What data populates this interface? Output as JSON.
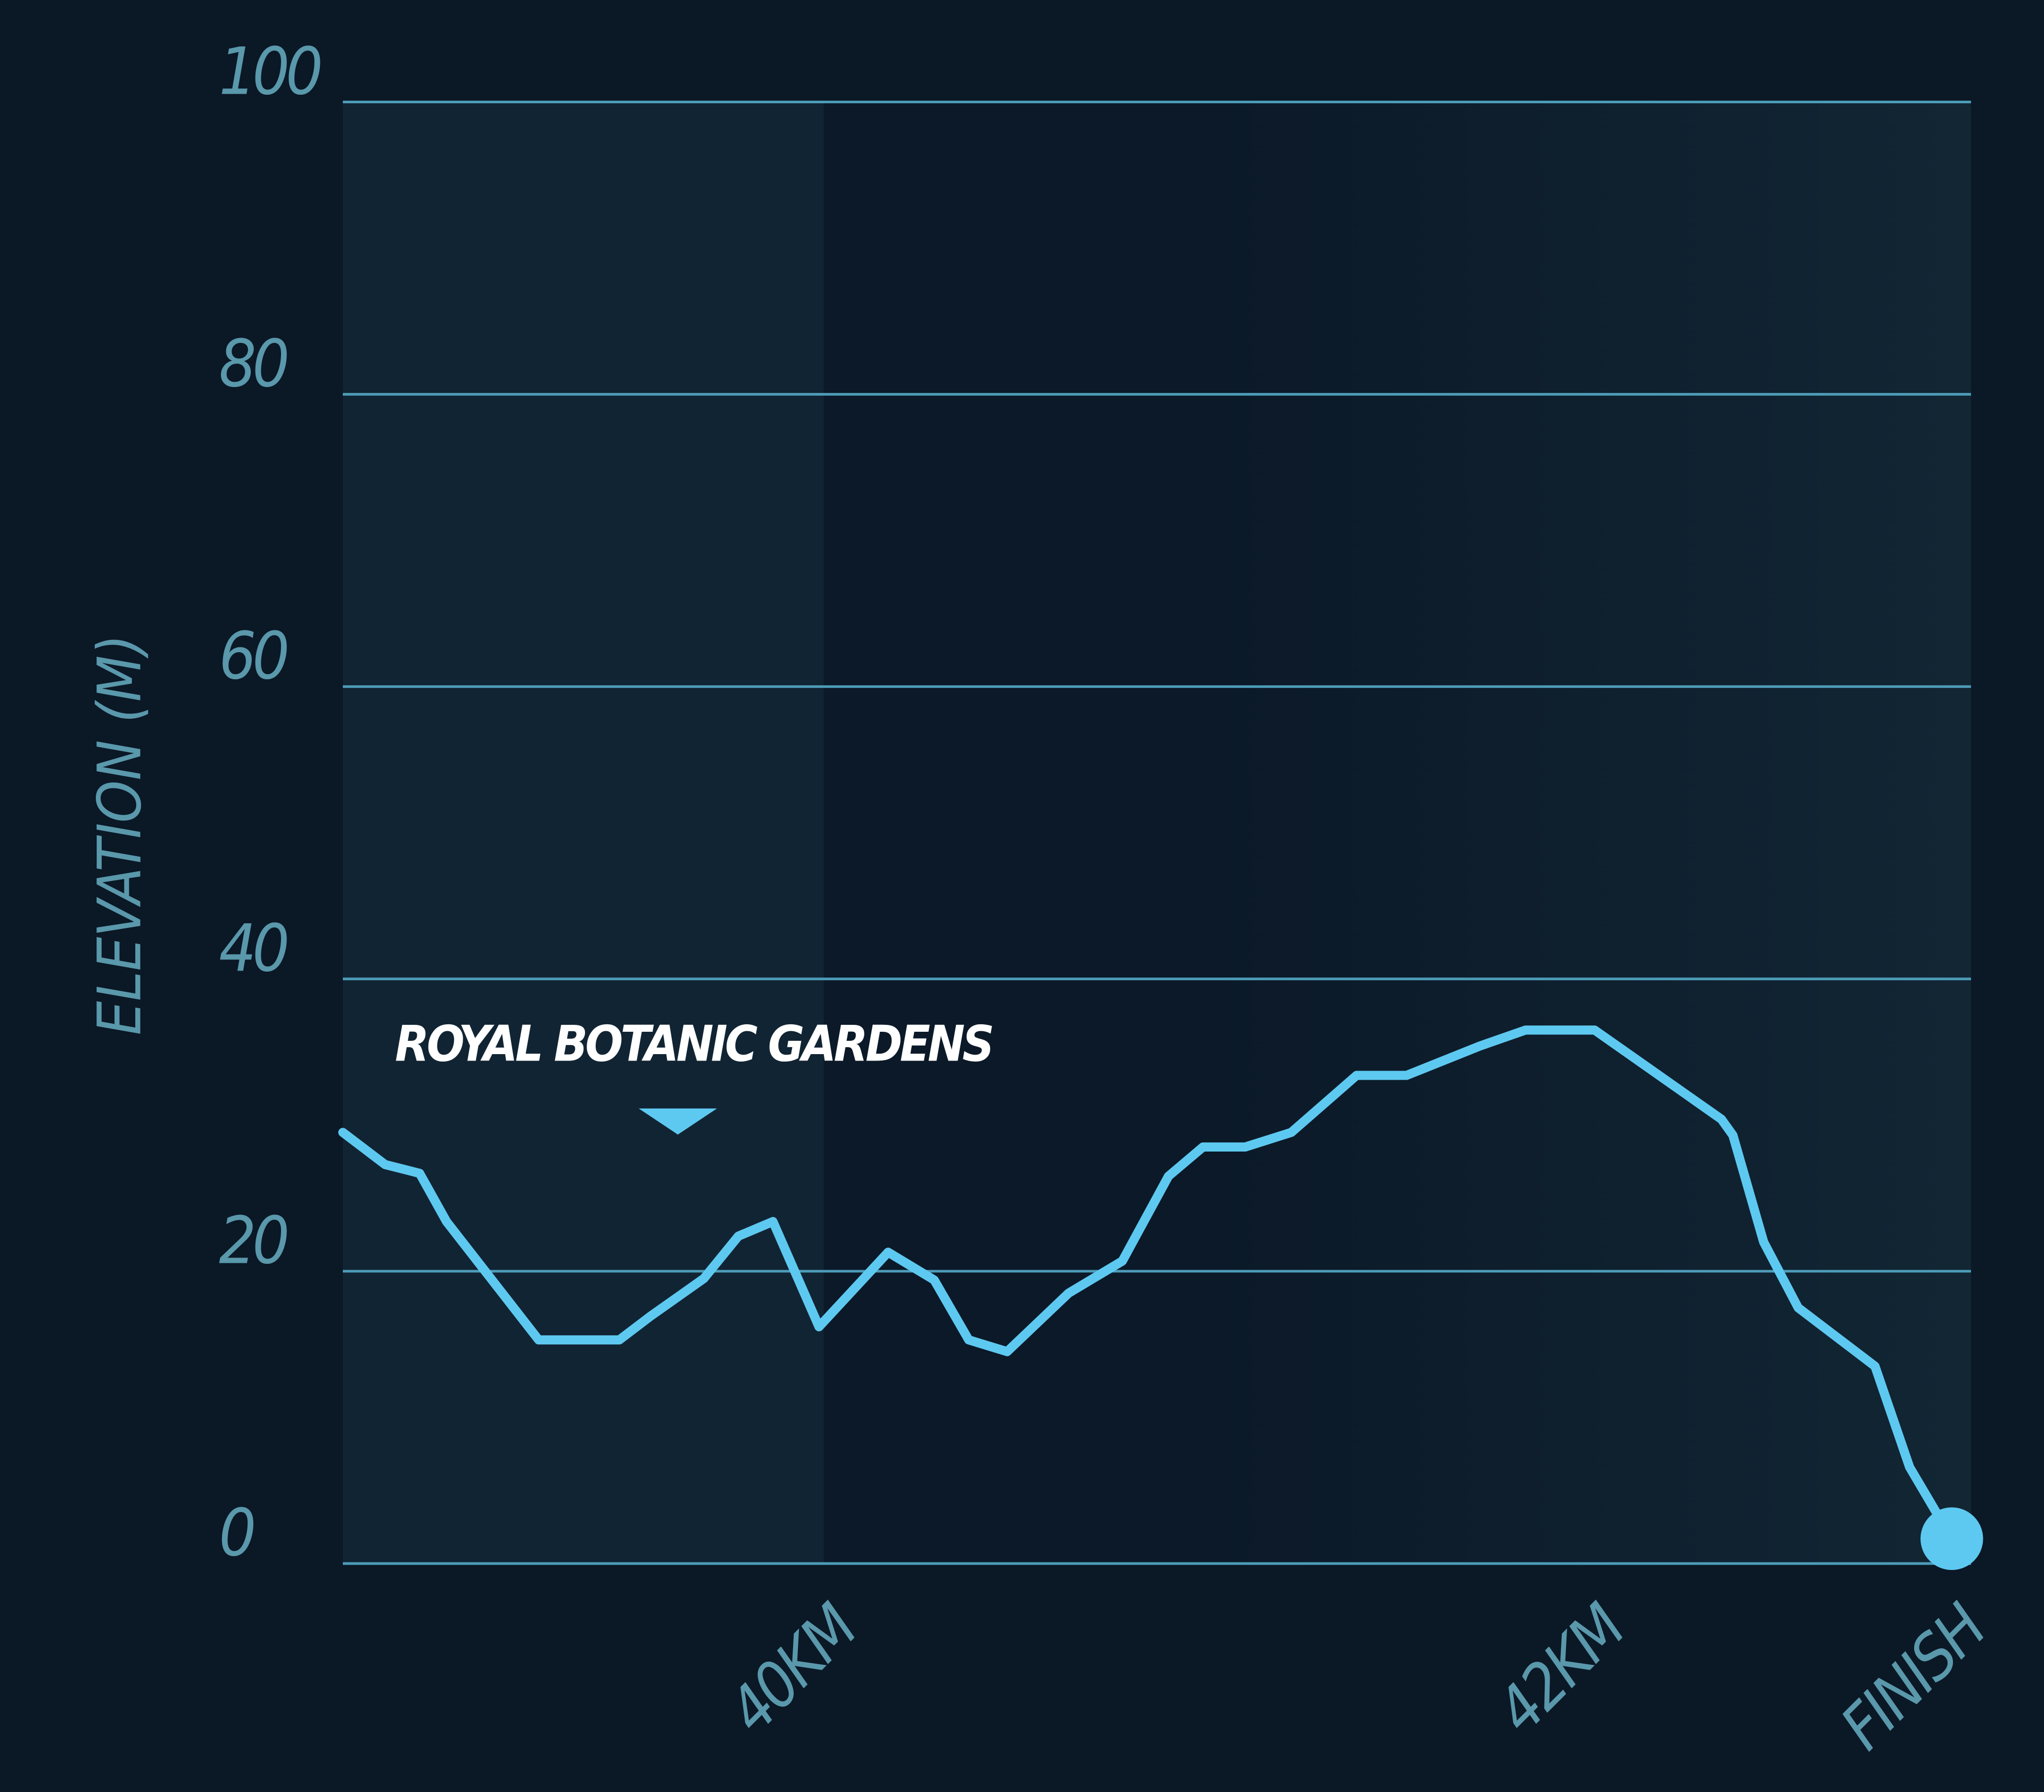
{
  "chart_data": {
    "type": "line",
    "ylabel": "ELEVATION (M)",
    "annotation": "ROYAL BOTANIC GARDENS",
    "x": [
      38.75,
      38.86,
      38.95,
      39.02,
      39.26,
      39.47,
      39.55,
      39.69,
      39.78,
      39.87,
      39.99,
      40.17,
      40.29,
      40.38,
      40.48,
      40.64,
      40.78,
      40.9,
      40.99,
      41.1,
      41.22,
      41.39,
      41.52,
      41.71,
      41.83,
      42.01,
      42.34,
      42.37,
      42.45,
      42.54,
      42.74,
      42.83,
      42.94
    ],
    "values": [
      29.5,
      27.3,
      26.7,
      23.4,
      15.3,
      15.3,
      16.9,
      19.5,
      22.4,
      23.4,
      16.2,
      21.3,
      19.4,
      15.3,
      14.5,
      18.5,
      20.7,
      26.5,
      28.5,
      28.5,
      29.5,
      33.4,
      33.4,
      35.4,
      36.5,
      36.5,
      30.4,
      29.3,
      22.0,
      17.5,
      13.5,
      6.6,
      1.7
    ],
    "color": "#5ec9f0",
    "xlim": [
      38.75,
      42.99
    ],
    "xticks": [
      {
        "value": 40,
        "label": "40KM"
      },
      {
        "value": 42,
        "label": "42KM"
      },
      {
        "value": 42.94,
        "label": "FINISH"
      }
    ],
    "ylim": [
      0,
      100
    ],
    "yticks": [
      0,
      20,
      40,
      60,
      80,
      100
    ],
    "grid": true
  }
}
